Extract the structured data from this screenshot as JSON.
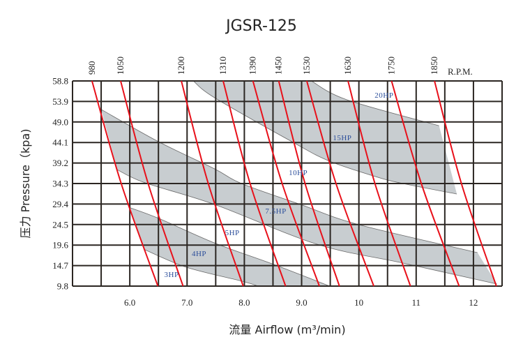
{
  "chart_data": {
    "type": "line",
    "title": "JGSR-125",
    "xlabel": "流量 Airflow (m³/min)",
    "ylabel": "压力 Pressure（kpa)",
    "rpm_label": "R.P.M.",
    "xlim": [
      5.0,
      12.5
    ],
    "ylim": [
      9.8,
      58.8
    ],
    "x_ticks": [
      {
        "v": 6,
        "label": "6.0"
      },
      {
        "v": 7,
        "label": "7.0"
      },
      {
        "v": 8,
        "label": "8.0"
      },
      {
        "v": 9,
        "label": "9.0"
      },
      {
        "v": 10,
        "label": "10"
      },
      {
        "v": 11,
        "label": "11"
      },
      {
        "v": 12,
        "label": "12"
      }
    ],
    "y_ticks": [
      "58.8",
      "53.9",
      "49.0",
      "44.1",
      "39.2",
      "34.3",
      "29.4",
      "24.5",
      "19.6",
      "14.7",
      "9.8"
    ],
    "grid": true,
    "grid_x_step": 0.5,
    "colors": {
      "rpm_curve": "#e8101a",
      "band_fill": "#c8cdd0",
      "grid": "#2b2622",
      "hp_label": "#2a4d9a"
    },
    "rpm_curves": [
      {
        "rpm": "980",
        "points": [
          [
            5.34,
            58.8
          ],
          [
            5.85,
            34.3
          ],
          [
            6.49,
            9.8
          ]
        ]
      },
      {
        "rpm": "1050",
        "points": [
          [
            5.84,
            58.8
          ],
          [
            6.32,
            34.3
          ],
          [
            6.93,
            9.8
          ]
        ]
      },
      {
        "rpm": "1200",
        "points": [
          [
            6.9,
            58.8
          ],
          [
            7.37,
            34.3
          ],
          [
            7.98,
            9.8
          ]
        ]
      },
      {
        "rpm": "1310",
        "points": [
          [
            7.63,
            58.8
          ],
          [
            8.1,
            34.3
          ],
          [
            8.72,
            9.8
          ]
        ]
      },
      {
        "rpm": "1390",
        "points": [
          [
            8.15,
            58.8
          ],
          [
            8.66,
            34.3
          ],
          [
            9.31,
            9.8
          ]
        ]
      },
      {
        "rpm": "1450",
        "points": [
          [
            8.6,
            58.8
          ],
          [
            9.06,
            34.3
          ],
          [
            9.66,
            9.8
          ]
        ]
      },
      {
        "rpm": "1530",
        "points": [
          [
            9.09,
            58.8
          ],
          [
            9.6,
            34.3
          ],
          [
            10.26,
            9.8
          ]
        ]
      },
      {
        "rpm": "1630",
        "points": [
          [
            9.81,
            58.8
          ],
          [
            10.28,
            34.3
          ],
          [
            10.9,
            9.8
          ]
        ]
      },
      {
        "rpm": "1750",
        "points": [
          [
            10.57,
            58.8
          ],
          [
            11.09,
            34.3
          ],
          [
            11.75,
            9.8
          ]
        ]
      },
      {
        "rpm": "1850",
        "points": [
          [
            11.32,
            58.8
          ],
          [
            11.79,
            34.3
          ],
          [
            12.4,
            9.8
          ]
        ]
      }
    ],
    "bands": [
      {
        "upper": [
          [
            9.17,
            58.8
          ],
          [
            9.79,
            54.3
          ],
          [
            11.4,
            48.1
          ]
        ],
        "lower": [
          [
            7.11,
            58.8
          ],
          [
            7.48,
            54.8
          ],
          [
            8.83,
            44.3
          ],
          [
            9.46,
            39.8
          ],
          [
            10.28,
            36.0
          ],
          [
            10.77,
            34.3
          ],
          [
            11.71,
            31.8
          ]
        ]
      },
      {
        "upper": [
          [
            5.5,
            52.0
          ],
          [
            6.5,
            44.3
          ],
          [
            7.48,
            37.8
          ],
          [
            7.95,
            34.3
          ],
          [
            8.98,
            29.3
          ],
          [
            9.99,
            24.5
          ],
          [
            12.07,
            17.8
          ]
        ],
        "lower": [
          [
            5.78,
            37.6
          ],
          [
            6.26,
            34.5
          ],
          [
            7.48,
            29.3
          ],
          [
            9.27,
            19.8
          ],
          [
            10.77,
            15.3
          ],
          [
            12.41,
            10.3
          ]
        ]
      },
      {
        "upper": [
          [
            5.99,
            28.6
          ],
          [
            6.5,
            26.0
          ],
          [
            7.48,
            20.1
          ],
          [
            8.49,
            15.1
          ],
          [
            9.49,
            9.8
          ]
        ],
        "lower": [
          [
            6.26,
            18.5
          ],
          [
            6.99,
            14.3
          ],
          [
            7.95,
            11.0
          ],
          [
            8.24,
            9.8
          ]
        ]
      }
    ],
    "hp_labels": [
      {
        "text": "20HP",
        "x": 10.44,
        "y": 55.5
      },
      {
        "text": "15HP",
        "x": 9.71,
        "y": 45.3
      },
      {
        "text": "10HP",
        "x": 8.94,
        "y": 37.0
      },
      {
        "text": "7.5HP",
        "x": 8.55,
        "y": 27.8
      },
      {
        "text": "5HP",
        "x": 7.79,
        "y": 22.6
      },
      {
        "text": "4HP",
        "x": 7.21,
        "y": 17.6
      },
      {
        "text": "3HP",
        "x": 6.73,
        "y": 12.6
      }
    ]
  }
}
